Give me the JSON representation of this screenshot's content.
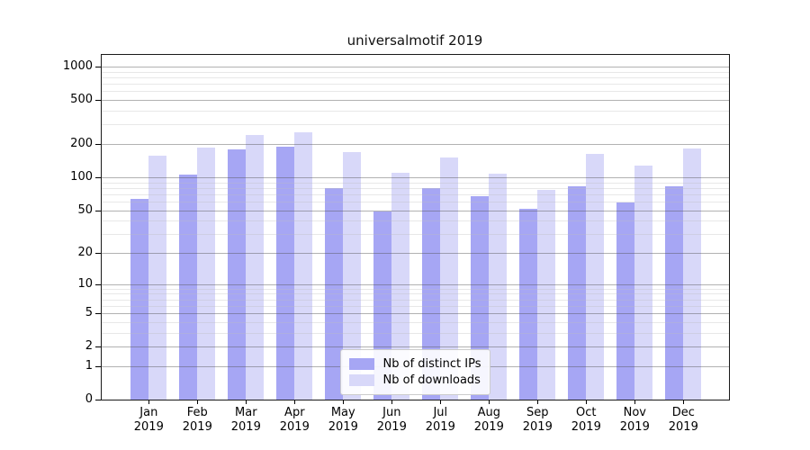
{
  "chart_data": {
    "type": "bar",
    "title": "universalmotif 2019",
    "categories": [
      "Jan",
      "Feb",
      "Mar",
      "Apr",
      "May",
      "Jun",
      "Jul",
      "Aug",
      "Sep",
      "Oct",
      "Nov",
      "Dec"
    ],
    "category_year": "2019",
    "series": [
      {
        "name": "Nb of distinct IPs",
        "color": "#a6a6f4",
        "values": [
          63,
          105,
          178,
          190,
          80,
          49,
          79,
          67,
          51,
          82,
          59,
          83
        ]
      },
      {
        "name": "Nb of downloads",
        "color": "#d8d8f9",
        "values": [
          156,
          186,
          240,
          255,
          169,
          109,
          151,
          108,
          76,
          163,
          128,
          182
        ]
      }
    ],
    "y_axis": {
      "scale": "log1p",
      "ticks": [
        1000,
        500,
        200,
        100,
        50,
        20,
        10,
        5,
        2,
        1,
        0
      ],
      "minor_ticks": [
        3,
        4,
        6,
        7,
        8,
        9,
        30,
        40,
        60,
        70,
        80,
        90,
        300,
        400,
        600,
        700,
        800,
        900
      ],
      "ylim": [
        0,
        1277
      ]
    },
    "xlabel": "",
    "ylabel": "",
    "grid": true,
    "legend_position": "lower center"
  }
}
